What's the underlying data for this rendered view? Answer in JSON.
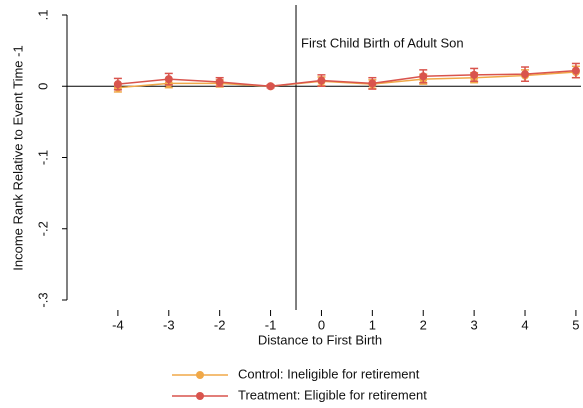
{
  "chart_data": {
    "type": "line",
    "ylabel": "Income Rank Relative to Event Time -1",
    "xlabel": "Distance to First Birth",
    "annotation": "First Child Birth of Adult Son",
    "vline": -0.5,
    "x": [
      -4,
      -3,
      -2,
      -1,
      0,
      1,
      2,
      3,
      4,
      5
    ],
    "xlim": [
      -5,
      5.1
    ],
    "xticks": [
      -4,
      -3,
      -2,
      -1,
      0,
      1,
      2,
      3,
      4,
      5
    ],
    "ylim": [
      -0.3,
      0.1
    ],
    "yticks": [
      {
        "value": -0.3,
        "label": "-.3"
      },
      {
        "value": -0.2,
        "label": "-.2"
      },
      {
        "value": -0.1,
        "label": "-.1"
      },
      0,
      {
        "value": 0.1,
        "label": ".1"
      }
    ],
    "legend": "bottom",
    "series": [
      {
        "name": "Control: Ineligible for retirement",
        "color": "#f0a848",
        "values": [
          -0.002,
          0.004,
          0.004,
          0,
          0.007,
          0.003,
          0.01,
          0.012,
          0.015,
          0.02
        ],
        "errors": [
          0.006,
          0.006,
          0.005,
          0.002,
          0.006,
          0.006,
          0.007,
          0.007,
          0.008,
          0.008
        ]
      },
      {
        "name": "Treatment: Eligible for retirement",
        "color": "#d9544d",
        "values": [
          0.003,
          0.01,
          0.006,
          0,
          0.008,
          0.004,
          0.014,
          0.016,
          0.017,
          0.022
        ],
        "errors": [
          0.008,
          0.008,
          0.006,
          0.002,
          0.008,
          0.008,
          0.009,
          0.009,
          0.01,
          0.01
        ]
      }
    ]
  }
}
